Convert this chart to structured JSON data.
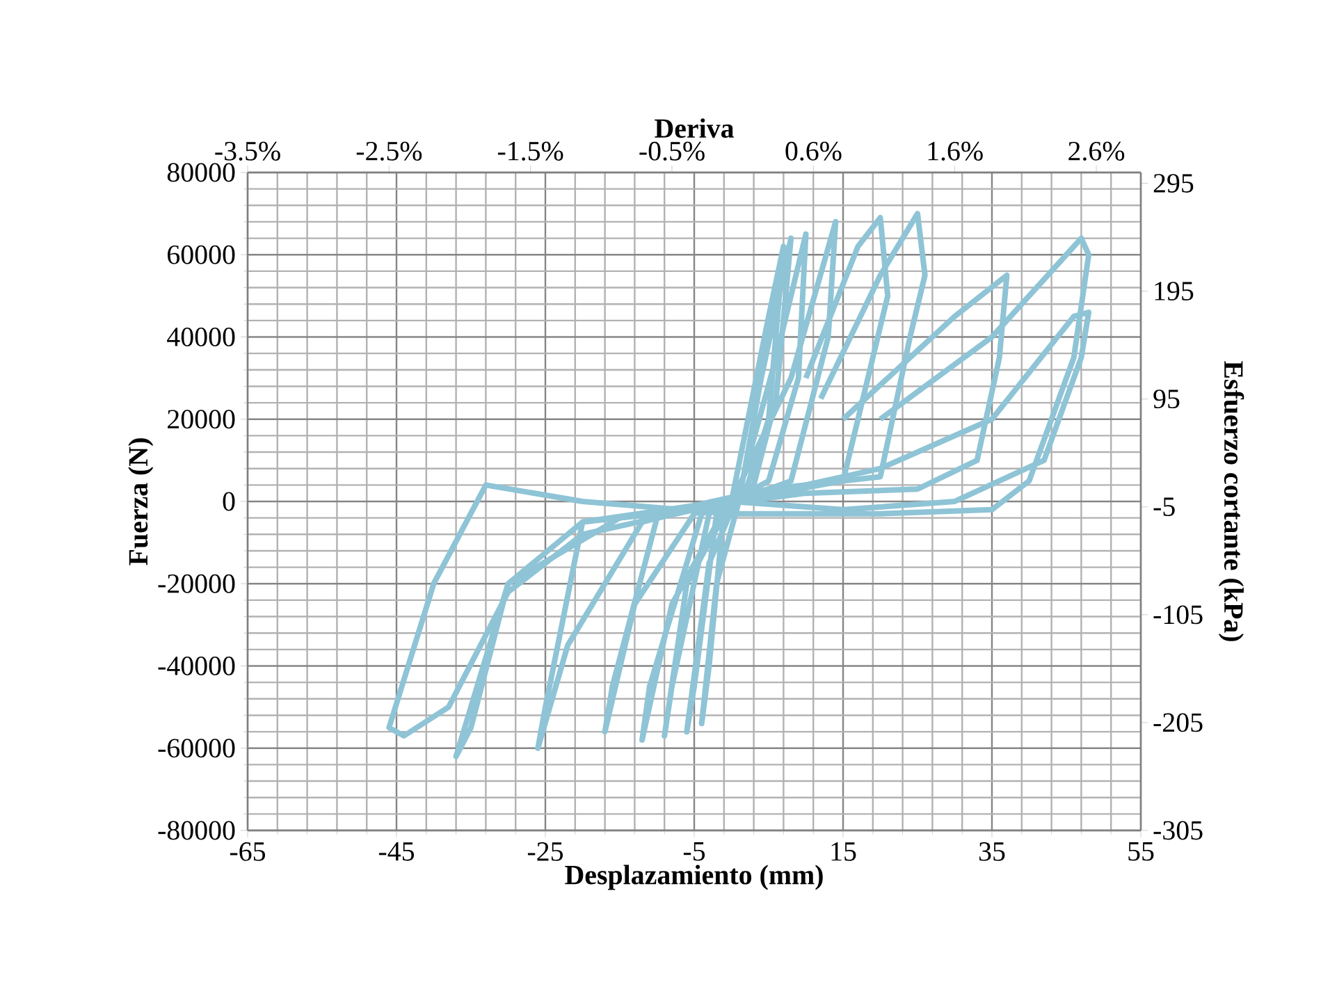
{
  "chart_data": {
    "type": "line",
    "xlabel": "Desplazamiento (mm)",
    "ylabel": "Fuerza (N)",
    "y2label": "Esfuerzo cortante (kPa)",
    "x2label": "Deriva",
    "xlim": [
      -65,
      55
    ],
    "xticks": [
      -65,
      -45,
      -25,
      -5,
      15,
      35,
      55
    ],
    "ylim": [
      -80000,
      80000
    ],
    "yticks": [
      -80000,
      -60000,
      -40000,
      -20000,
      0,
      20000,
      40000,
      60000,
      80000
    ],
    "y2lim": [
      -305,
      305
    ],
    "y2ticks": [
      -305,
      -205,
      -105,
      -5,
      95,
      195,
      295
    ],
    "x2lim": [
      -3.5,
      2.92
    ],
    "x2ticks": [
      {
        "value": -3.5,
        "label": "-3.5%"
      },
      {
        "value": -2.483,
        "label": "-2.5%"
      },
      {
        "value": -1.467,
        "label": "-1.5%"
      },
      {
        "value": -0.45,
        "label": "-0.5%"
      },
      {
        "value": 0.567,
        "label": "0.6%"
      },
      {
        "value": 1.583,
        "label": "1.6%"
      },
      {
        "value": 2.6,
        "label": "2.6%"
      }
    ],
    "grid": true,
    "series": [
      {
        "color": "#8ec4d6",
        "x": [
          0,
          5,
          7,
          5,
          2,
          -1,
          -3,
          -4,
          -2,
          1,
          4,
          8,
          6,
          3,
          -2,
          -5,
          -6,
          -3,
          1,
          6,
          10,
          9,
          5,
          -3,
          -8,
          -9,
          -6,
          0,
          8,
          14,
          13,
          8,
          -4,
          -11,
          -12,
          -8,
          0
        ],
        "values": [
          0,
          45000,
          62000,
          20000,
          3000,
          -2000,
          -40000,
          -54000,
          -20000,
          0,
          30000,
          64000,
          25000,
          4000,
          -3000,
          -45000,
          -56000,
          -15000,
          2000,
          35000,
          65000,
          30000,
          5000,
          -3000,
          -45000,
          -57000,
          -20000,
          0,
          30000,
          68000,
          40000,
          5000,
          -3000,
          -45000,
          -58000,
          -25000,
          1000
        ]
      },
      {
        "color": "#8ec4d6",
        "x": [
          10,
          17,
          20,
          21,
          15,
          0,
          -10,
          -16,
          -17,
          -13,
          -5,
          3
        ],
        "values": [
          30000,
          62000,
          69000,
          50000,
          5000,
          0,
          -4000,
          -45000,
          -56000,
          -25000,
          -3000,
          2000
        ]
      },
      {
        "color": "#8ec4d6",
        "x": [
          12,
          20,
          25,
          26,
          24,
          20,
          5,
          -10,
          -20,
          -25,
          -26,
          -22,
          -12,
          5
        ],
        "values": [
          25000,
          55000,
          70000,
          55000,
          40000,
          6000,
          3000,
          -3000,
          -5000,
          -50000,
          -60000,
          -35000,
          -5000,
          3000
        ]
      },
      {
        "color": "#8ec4d6",
        "x": [
          15,
          30,
          37,
          36,
          33,
          25,
          10,
          -15,
          -30,
          -37,
          -35,
          -30,
          -20,
          10
        ],
        "values": [
          20000,
          45000,
          55000,
          35000,
          10000,
          3000,
          2000,
          -4000,
          -20000,
          -62000,
          -55000,
          -20000,
          -5000,
          3000
        ]
      },
      {
        "color": "#8ec4d6",
        "x": [
          20,
          35,
          45,
          47,
          48,
          46,
          40,
          35,
          20,
          0,
          -20,
          -33,
          -40,
          -46,
          -44,
          -38,
          -30,
          -20,
          0,
          20,
          35,
          46,
          48,
          47,
          42,
          30,
          15,
          0
        ],
        "values": [
          20000,
          40000,
          60000,
          64000,
          60000,
          35000,
          5000,
          -2000,
          -3000,
          -3000,
          0,
          4000,
          -20000,
          -55000,
          -57000,
          -50000,
          -22000,
          -8000,
          0,
          8000,
          20000,
          45000,
          46000,
          35000,
          10000,
          0,
          -2000,
          0
        ]
      }
    ]
  }
}
